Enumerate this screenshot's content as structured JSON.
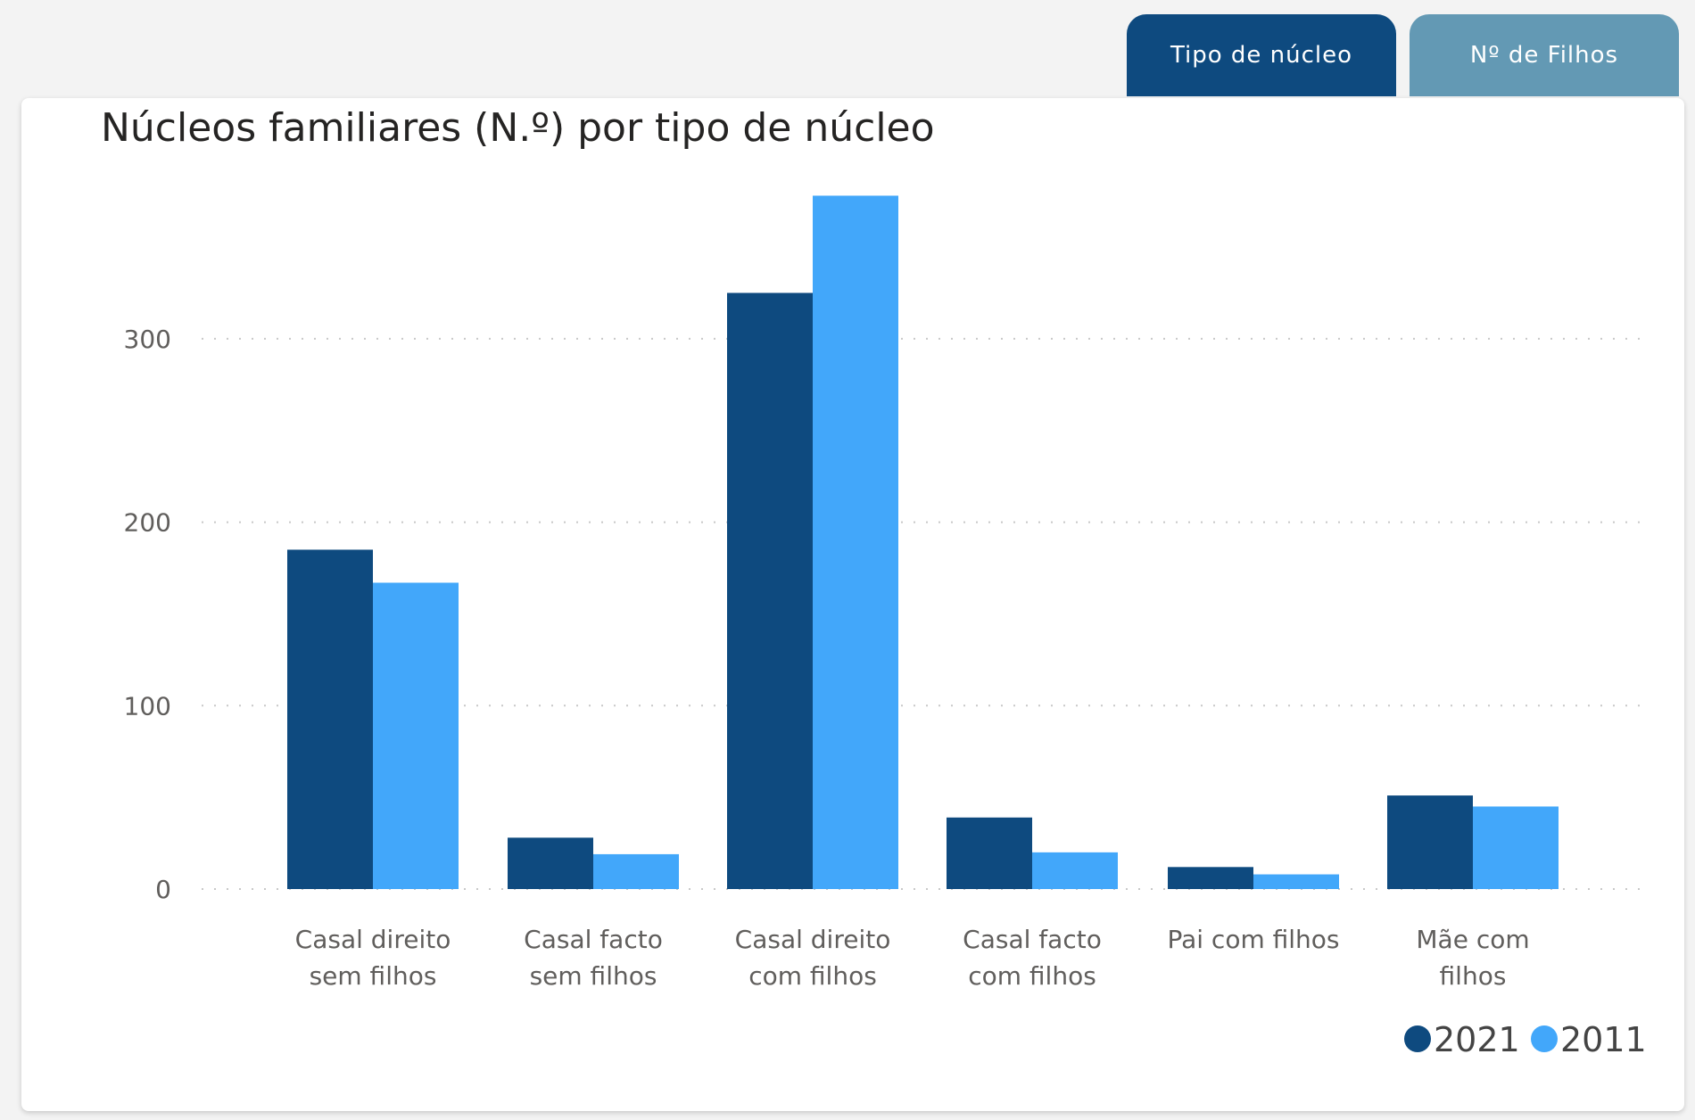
{
  "tabs": [
    {
      "label": "Tipo de núcleo",
      "active": true
    },
    {
      "label": "Nº de Filhos",
      "active": false
    }
  ],
  "chart_data": {
    "type": "bar",
    "title": "Núcleos familiares (N.º) por tipo de núcleo",
    "xlabel": "",
    "ylabel": "",
    "ylim": [
      0,
      390
    ],
    "yticks": [
      0,
      100,
      200,
      300
    ],
    "ytick_labels": [
      "0",
      "100",
      "200",
      "300"
    ],
    "grid": true,
    "legend_position": "bottom-right",
    "categories": [
      [
        "Casal direito",
        "sem filhos"
      ],
      [
        "Casal facto",
        "sem filhos"
      ],
      [
        "Casal direito",
        "com filhos"
      ],
      [
        "Casal facto",
        "com filhos"
      ],
      [
        "Pai com filhos"
      ],
      [
        "Mãe com",
        "filhos"
      ]
    ],
    "series": [
      {
        "name": "2021",
        "color": "#0e4a7f",
        "values": [
          185,
          28,
          325,
          39,
          12,
          51
        ]
      },
      {
        "name": "2011",
        "color": "#42a7fa",
        "values": [
          167,
          19,
          378,
          20,
          8,
          45
        ]
      }
    ]
  }
}
